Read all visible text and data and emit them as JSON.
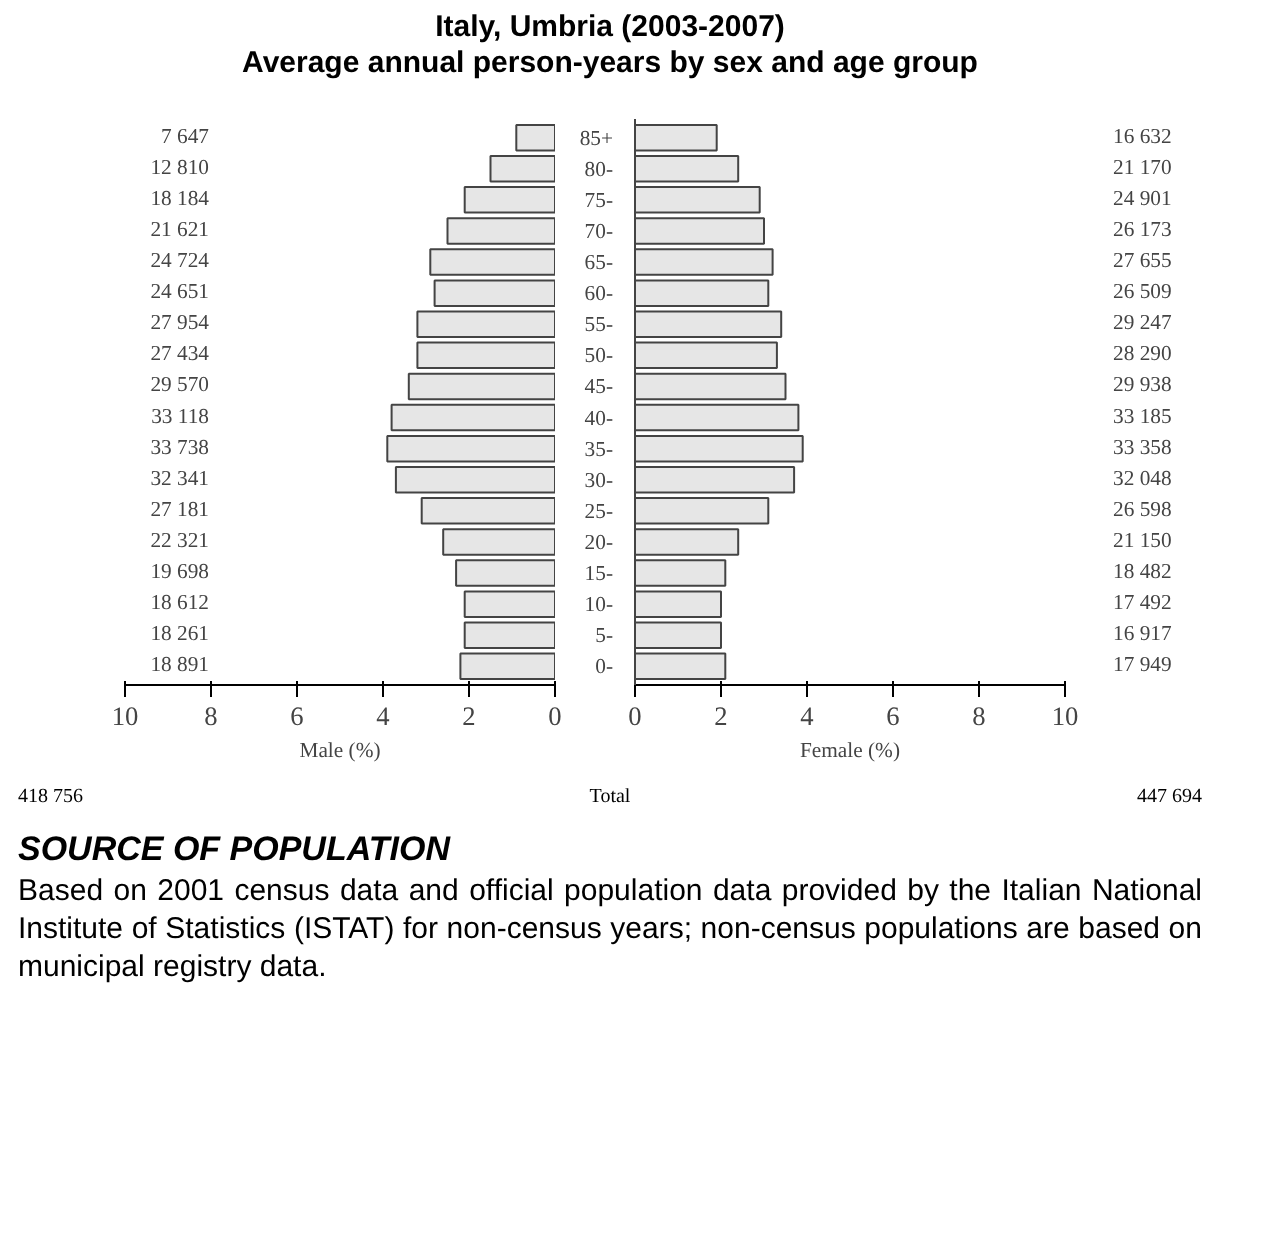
{
  "chart_data": [
    {
      "type": "bar",
      "orientation": "horizontal",
      "title": "Italy, Umbria (2003-2007)",
      "subtitle": "Average annual person-years by sex and age group",
      "xlabel": "Male (%)",
      "categories": [
        null,
        null,
        null,
        null,
        null,
        null,
        null,
        null,
        null,
        null,
        null,
        null,
        null,
        null,
        null,
        null,
        null,
        null
      ],
      "values": [
        0.9,
        1.5,
        2.1,
        2.5,
        2.9,
        2.8,
        3.2,
        3.2,
        3.4,
        3.8,
        3.9,
        3.7,
        3.1,
        2.6,
        2.3,
        2.1,
        2.1,
        2.2
      ],
      "color": "#e6e6e6",
      "xlim": [
        10,
        0
      ],
      "xticks": [
        10,
        8,
        6,
        4,
        2,
        0
      ],
      "tick_labels": "x",
      "grid": false,
      "annotations": [
        "7 647",
        "12 810",
        "18 184",
        "21 621",
        "24 724",
        "24 651",
        "27 954",
        "27 434",
        "29 570",
        "33 118",
        "33 738",
        "32 341",
        "27 181",
        "22 321",
        "19 698",
        "18 612",
        "18 261",
        "18 891",
        "418 756",
        "Total",
        "SOURCE OF POPULATION",
        "Based on 2001 census data and official population data provided by the Italian National Institute of Statistics (ISTAT) for non-census years; non-census populations are based on municipal registry data."
      ]
    },
    {
      "type": "bar",
      "orientation": "horizontal",
      "xlabel": "Female (%)",
      "categories": [
        "85+",
        "80-",
        "75-",
        "70-",
        "65-",
        "60-",
        "55-",
        "50-",
        "45-",
        "40-",
        "35-",
        "30-",
        "25-",
        "20-",
        "15-",
        "10-",
        "5-",
        "0-"
      ],
      "values": [
        1.9,
        2.4,
        2.9,
        3.0,
        3.2,
        3.1,
        3.4,
        3.3,
        3.5,
        3.8,
        3.9,
        3.7,
        3.1,
        2.4,
        2.1,
        2.0,
        2.0,
        2.1
      ],
      "color": "#e6e6e6",
      "xlim": [
        0,
        10
      ],
      "xticks": [
        0,
        2,
        4,
        6,
        8,
        10
      ],
      "grid": false,
      "annotations": [
        "16 632",
        "21 170",
        "24 901",
        "26 173",
        "27 655",
        "26 509",
        "29 247",
        "28 290",
        "29 938",
        "33 185",
        "33 358",
        "32 048",
        "26 598",
        "21 150",
        "18 482",
        "17 492",
        "16 917",
        "17 949",
        "447 694"
      ]
    }
  ]
}
